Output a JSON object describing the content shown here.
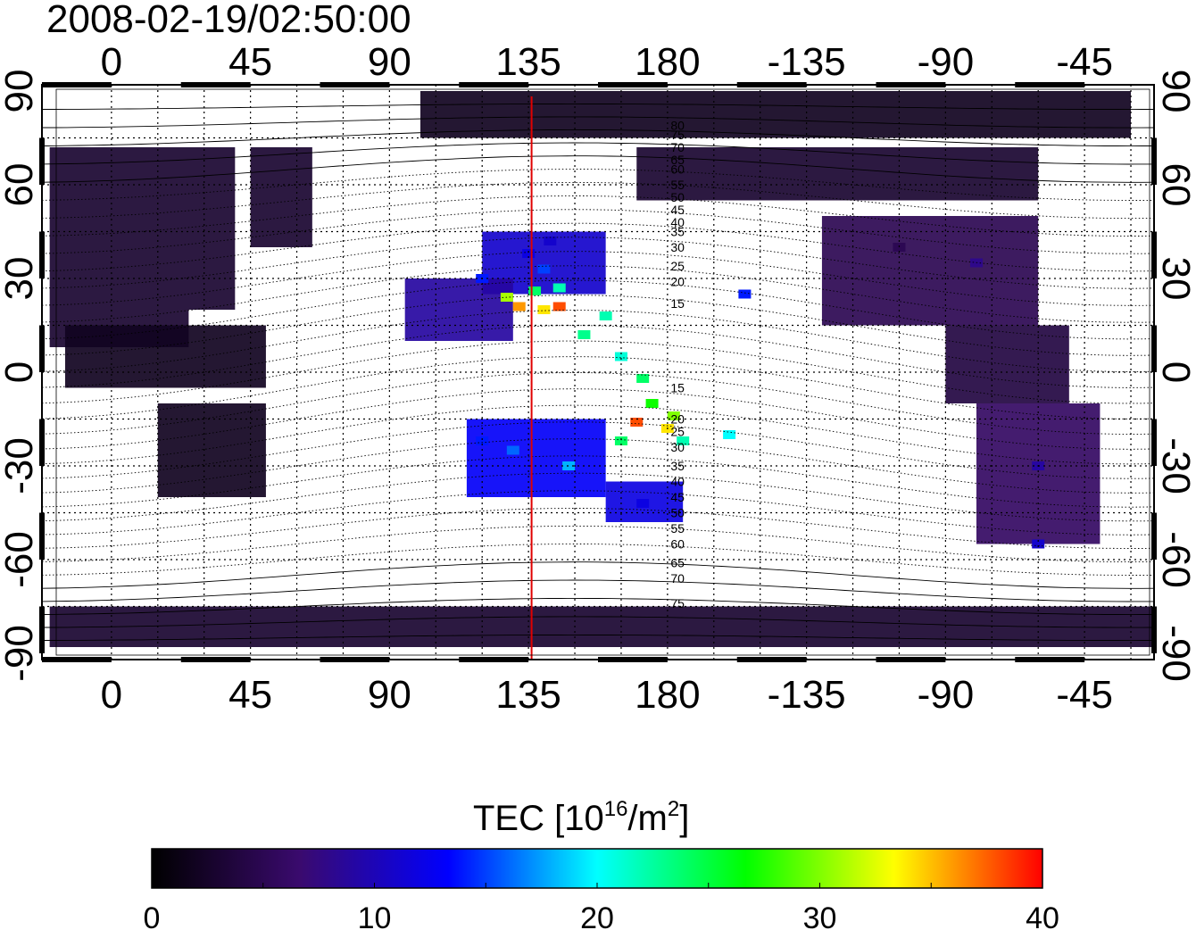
{
  "timestamp": "2008-02-19/02:50:00",
  "map": {
    "lon_ticks": [
      "0",
      "45",
      "90",
      "135",
      "180",
      "-135",
      "-90",
      "-45"
    ],
    "lat_ticks": [
      "90",
      "60",
      "30",
      "0",
      "-30",
      "-60",
      "-90"
    ],
    "lon_range": [
      -22.5,
      337.5
    ],
    "lat_range": [
      -92,
      92
    ],
    "meridian_marker_lon": 136,
    "meridian_marker_color": "#e00000",
    "contour_labels_north": [
      "80",
      "75",
      "70",
      "65",
      "60",
      "55",
      "50",
      "45",
      "40",
      "35",
      "30",
      "25",
      "20",
      "15"
    ],
    "contour_labels_south": [
      "15",
      "20",
      "25",
      "30",
      "35",
      "40",
      "45",
      "50",
      "55",
      "60",
      "65",
      "70",
      "75"
    ],
    "tec_cells": [
      {
        "lon": 140,
        "lat": 20,
        "tec": 34
      },
      {
        "lon": 145,
        "lat": 21,
        "tec": 38
      },
      {
        "lon": 132,
        "lat": 21,
        "tec": 36
      },
      {
        "lon": 128,
        "lat": 24,
        "tec": 31
      },
      {
        "lon": 137,
        "lat": 26,
        "tec": 24
      },
      {
        "lon": 145,
        "lat": 27,
        "tec": 22
      },
      {
        "lon": 140,
        "lat": 33,
        "tec": 15
      },
      {
        "lon": 135,
        "lat": 38,
        "tec": 12
      },
      {
        "lon": 142,
        "lat": 42,
        "tec": 11
      },
      {
        "lon": 120,
        "lat": 30,
        "tec": 14
      },
      {
        "lon": 160,
        "lat": 18,
        "tec": 22
      },
      {
        "lon": 153,
        "lat": 12,
        "tec": 23
      },
      {
        "lon": 165,
        "lat": 5,
        "tec": 21
      },
      {
        "lon": 172,
        "lat": -2,
        "tec": 24
      },
      {
        "lon": 175,
        "lat": -10,
        "tec": 27
      },
      {
        "lon": 182,
        "lat": -14,
        "tec": 30
      },
      {
        "lon": 180,
        "lat": -18,
        "tec": 34
      },
      {
        "lon": 170,
        "lat": -16,
        "tec": 38
      },
      {
        "lon": 165,
        "lat": -22,
        "tec": 24
      },
      {
        "lon": 185,
        "lat": -22,
        "tec": 22
      },
      {
        "lon": 200,
        "lat": -20,
        "tec": 20
      },
      {
        "lon": 130,
        "lat": -25,
        "tec": 16
      },
      {
        "lon": 148,
        "lat": -30,
        "tec": 18
      },
      {
        "lon": 120,
        "lat": -22,
        "tec": 14
      },
      {
        "lon": 172,
        "lat": -42,
        "tec": 12
      },
      {
        "lon": 205,
        "lat": 25,
        "tec": 14
      },
      {
        "lon": 255,
        "lat": 40,
        "tec": 5
      },
      {
        "lon": 280,
        "lat": 35,
        "tec": 8
      },
      {
        "lon": 300,
        "lat": -30,
        "tec": 9
      },
      {
        "lon": 300,
        "lat": -55,
        "tec": 11
      }
    ]
  },
  "colorbar": {
    "title": "TEC  [10",
    "title_sup": "16",
    "title_mid": "/m",
    "title_sup2": "2",
    "title_end": "]",
    "ticks": [
      "0",
      "10",
      "20",
      "30",
      "40"
    ],
    "range": [
      0,
      40
    ],
    "stops": [
      "#000000",
      "#3a0a6e",
      "#0000ff",
      "#00ffff",
      "#00ff00",
      "#ffff00",
      "#ff0000"
    ]
  }
}
